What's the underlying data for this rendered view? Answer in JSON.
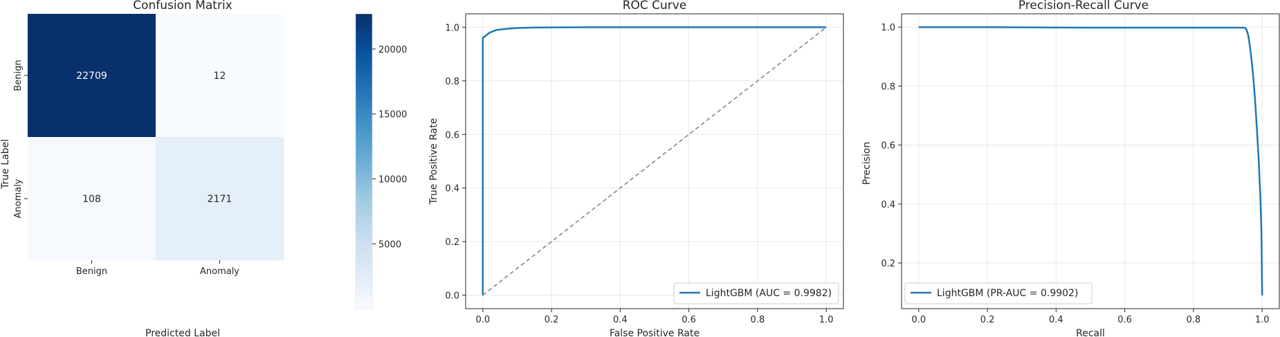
{
  "chart_data": [
    {
      "type": "heatmap",
      "title": "Confusion Matrix",
      "xlabel": "Predicted Label",
      "ylabel": "True Label",
      "x_categories": [
        "Benign",
        "Anomaly"
      ],
      "y_categories": [
        "Benign",
        "Anomaly"
      ],
      "values": [
        [
          22709,
          12
        ],
        [
          108,
          2171
        ]
      ],
      "colormap": "Blues",
      "colorbar": {
        "ticks": [
          5000,
          10000,
          15000,
          20000
        ],
        "range": [
          12,
          22709
        ]
      }
    },
    {
      "type": "line",
      "title": "ROC Curve",
      "xlabel": "False Positive Rate",
      "ylabel": "True Positive Rate",
      "xlim": [
        -0.05,
        1.05
      ],
      "ylim": [
        -0.05,
        1.05
      ],
      "xticks": [
        "0.0",
        "0.2",
        "0.4",
        "0.6",
        "0.8",
        "1.0"
      ],
      "yticks": [
        "0.0",
        "0.2",
        "0.4",
        "0.6",
        "0.8",
        "1.0"
      ],
      "grid": true,
      "legend_position": "lower right",
      "series": [
        {
          "name": "LightGBM (AUC = 0.9982)",
          "color": "#1f77b4",
          "x": [
            0.0,
            0.0,
            0.002,
            0.005,
            0.01,
            0.015,
            0.02,
            0.03,
            0.04,
            0.06,
            0.08,
            0.1,
            0.15,
            0.3,
            0.5,
            0.7,
            0.9,
            1.0
          ],
          "y": [
            0.0,
            0.96,
            0.962,
            0.965,
            0.97,
            0.975,
            0.98,
            0.985,
            0.99,
            0.993,
            0.995,
            0.997,
            0.999,
            1.0,
            1.0,
            1.0,
            1.0,
            1.0
          ]
        },
        {
          "name": "",
          "color": "#7f7f7f",
          "dashed": true,
          "x": [
            0.0,
            1.0
          ],
          "y": [
            0.0,
            1.0
          ]
        }
      ]
    },
    {
      "type": "line",
      "title": "Precision-Recall Curve",
      "xlabel": "Recall",
      "ylabel": "Precision",
      "xlim": [
        -0.05,
        1.05
      ],
      "ylim": [
        0.045,
        1.045
      ],
      "xticks": [
        "0.0",
        "0.2",
        "0.4",
        "0.6",
        "0.8",
        "1.0"
      ],
      "yticks": [
        "0.2",
        "0.4",
        "0.6",
        "0.8",
        "1.0"
      ],
      "grid": true,
      "legend_position": "lower left",
      "series": [
        {
          "name": "LightGBM (PR-AUC = 0.9902)",
          "color": "#1f77b4",
          "x": [
            0.0,
            0.2,
            0.35,
            0.5,
            0.7,
            0.9,
            0.95,
            0.955,
            0.96,
            0.965,
            0.97,
            0.975,
            0.98,
            0.985,
            0.99,
            0.995,
            0.998,
            1.0
          ],
          "y": [
            1.0,
            1.0,
            0.999,
            0.998,
            0.998,
            0.998,
            0.998,
            0.99,
            0.97,
            0.93,
            0.88,
            0.82,
            0.74,
            0.65,
            0.55,
            0.42,
            0.3,
            0.09
          ]
        }
      ]
    }
  ]
}
